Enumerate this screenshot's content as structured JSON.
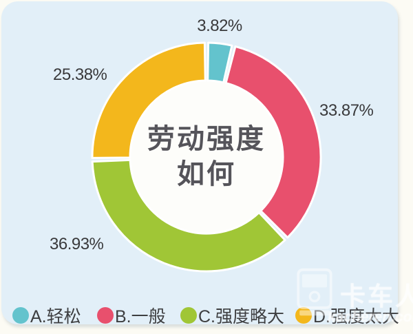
{
  "page": {
    "background_color": "#fcfbf4",
    "card_background_color": "#e2eff8",
    "center_circle_color": "#fdfdfa"
  },
  "chart_data": {
    "type": "pie",
    "variant": "donut",
    "title": "劳动强度如何",
    "title_lines": [
      "劳动强度",
      "如何"
    ],
    "legend_position": "bottom",
    "start_angle_deg": 0,
    "direction": "clockwise",
    "inner_radius_ratio": 0.67,
    "series": [
      {
        "key": "a",
        "label": "A.轻松",
        "value": 3.82,
        "display": "3.82%",
        "color": "#63c3cd"
      },
      {
        "key": "b",
        "label": "B.一般",
        "value": 33.87,
        "display": "33.87%",
        "color": "#e8506d"
      },
      {
        "key": "c",
        "label": "C.强度略大",
        "value": 36.93,
        "display": "36.93%",
        "color": "#a0c636"
      },
      {
        "key": "d",
        "label": "D.强度太大",
        "value": 25.38,
        "display": "25.38%",
        "color": "#f3b71c"
      }
    ]
  },
  "watermark": {
    "brand": "卡车人",
    "url_text": "kacheren.com",
    "icon": "truck-icon"
  }
}
